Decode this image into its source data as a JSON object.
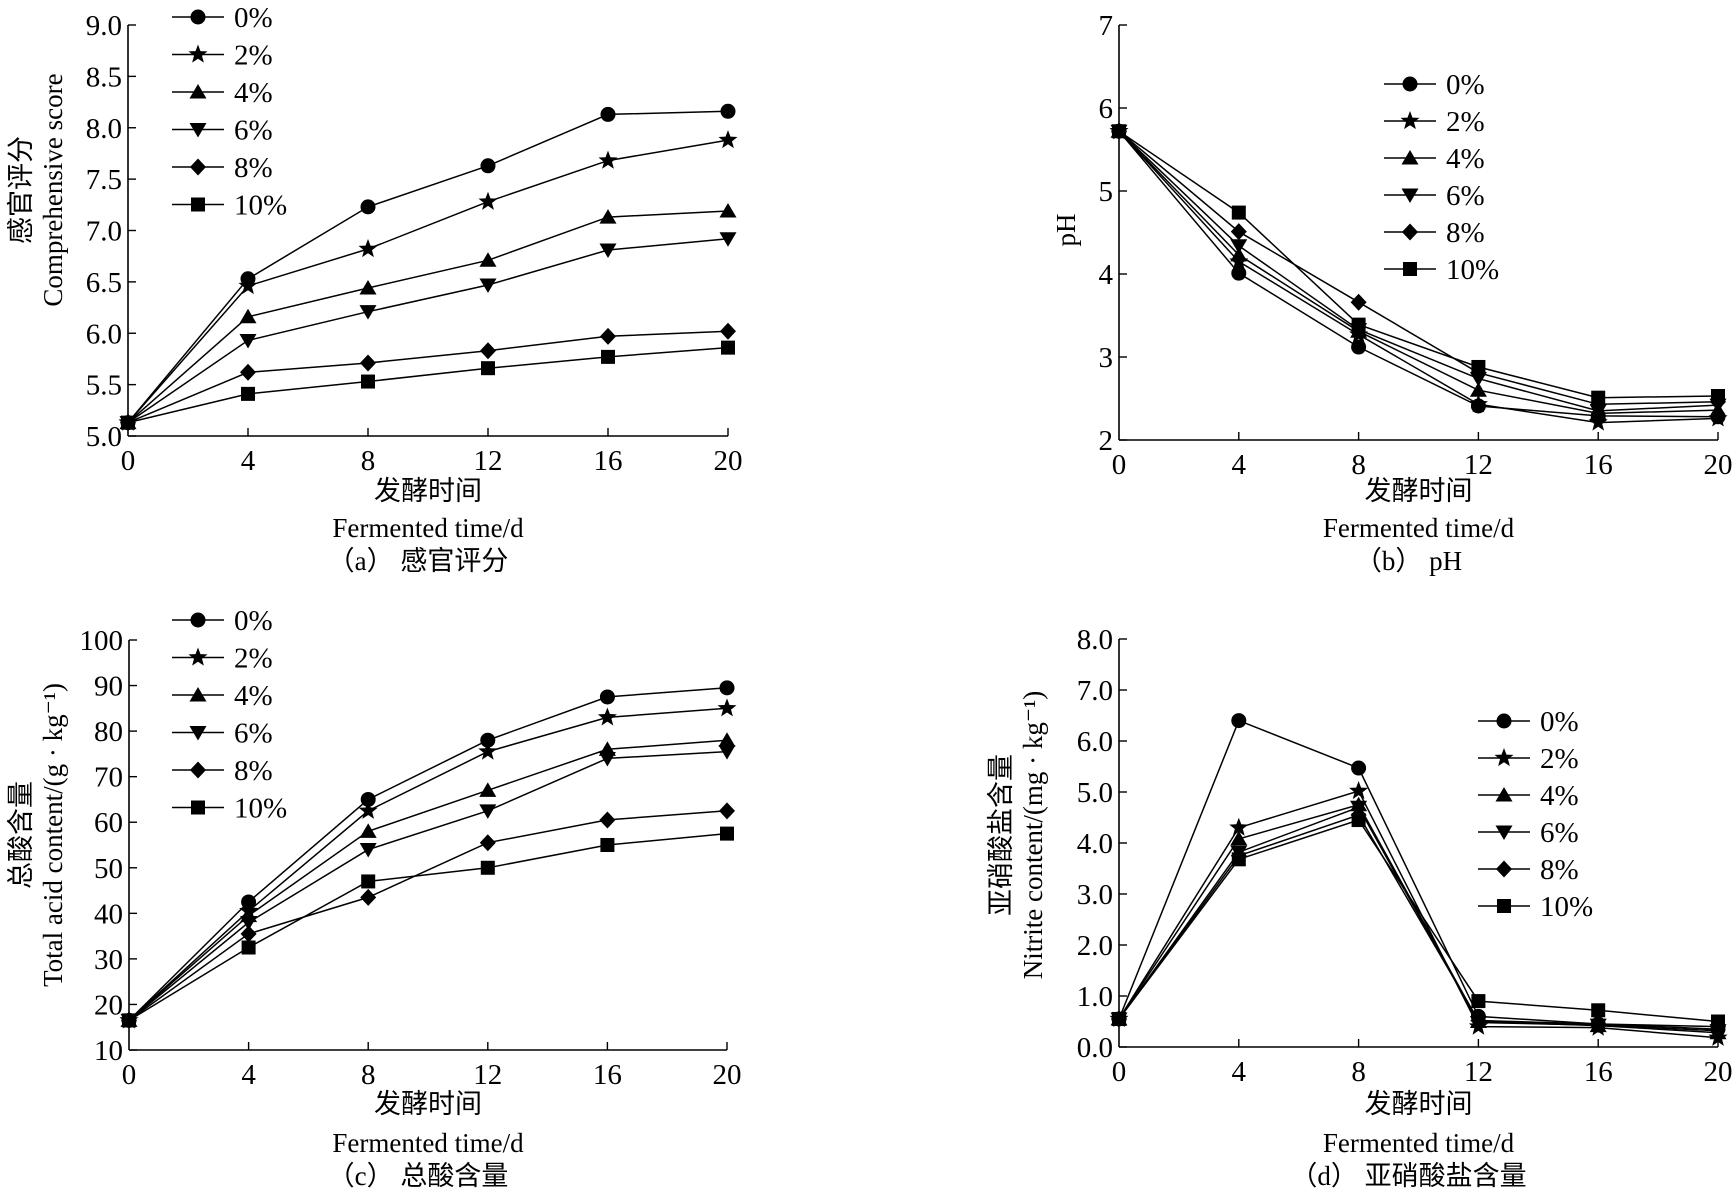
{
  "figure": {
    "series_names": [
      "0%",
      "2%",
      "4%",
      "6%",
      "8%",
      "10%"
    ],
    "marker_types": [
      "circle",
      "star",
      "triangle-up",
      "triangle-down",
      "diamond",
      "square"
    ]
  },
  "chart_data": [
    {
      "id": "a",
      "type": "line",
      "caption": "（a） 感官评分",
      "xlabel_cn": "发酵时间",
      "xlabel_en": "Fermented time/d",
      "ylabel_cn": "感官评分",
      "ylabel_en": "Comprehensive score",
      "x": [
        0,
        4,
        8,
        12,
        16,
        20
      ],
      "xticks": [
        "0",
        "4",
        "8",
        "12",
        "16",
        "20"
      ],
      "xlim": [
        0,
        20
      ],
      "ylim": [
        5.0,
        9.0
      ],
      "yticks": [
        "5.0",
        "5.5",
        "6.0",
        "6.5",
        "7.0",
        "7.5",
        "8.0",
        "8.5",
        "9.0"
      ],
      "ytick_values": [
        5.0,
        5.5,
        6.0,
        6.5,
        7.0,
        7.5,
        8.0,
        8.5,
        9.0
      ],
      "legend_position": "top-left",
      "grid": false,
      "series": [
        {
          "name": "0%",
          "marker": "circle",
          "values": [
            5.13,
            6.53,
            7.23,
            7.63,
            8.13,
            8.16
          ]
        },
        {
          "name": "2%",
          "marker": "star",
          "values": [
            5.13,
            6.46,
            6.82,
            7.28,
            7.68,
            7.88
          ]
        },
        {
          "name": "4%",
          "marker": "triangle-up",
          "values": [
            5.13,
            6.16,
            6.44,
            6.71,
            7.13,
            7.19
          ]
        },
        {
          "name": "6%",
          "marker": "triangle-down",
          "values": [
            5.13,
            5.93,
            6.21,
            6.47,
            6.81,
            6.92
          ]
        },
        {
          "name": "8%",
          "marker": "diamond",
          "values": [
            5.13,
            5.62,
            5.71,
            5.83,
            5.97,
            6.02
          ]
        },
        {
          "name": "10%",
          "marker": "square",
          "values": [
            5.13,
            5.41,
            5.53,
            5.66,
            5.77,
            5.86
          ]
        }
      ]
    },
    {
      "id": "b",
      "type": "line",
      "caption": "（b） pH",
      "xlabel_cn": "发酵时间",
      "xlabel_en": "Fermented time/d",
      "ylabel_cn": "",
      "ylabel_en": "pH",
      "x": [
        0,
        4,
        8,
        12,
        16,
        20
      ],
      "xticks": [
        "0",
        "4",
        "8",
        "12",
        "16",
        "20"
      ],
      "xlim": [
        0,
        20
      ],
      "ylim": [
        2,
        7
      ],
      "yticks": [
        "2",
        "3",
        "4",
        "5",
        "6",
        "7"
      ],
      "ytick_values": [
        2,
        3,
        4,
        5,
        6,
        7
      ],
      "legend_position": "top-right",
      "grid": false,
      "series": [
        {
          "name": "0%",
          "marker": "circle",
          "values": [
            5.72,
            4.01,
            3.12,
            2.41,
            2.29,
            2.28
          ]
        },
        {
          "name": "2%",
          "marker": "star",
          "values": [
            5.72,
            4.15,
            3.27,
            2.43,
            2.21,
            2.26
          ]
        },
        {
          "name": "4%",
          "marker": "triangle-up",
          "values": [
            5.72,
            4.23,
            3.31,
            2.6,
            2.32,
            2.36
          ]
        },
        {
          "name": "6%",
          "marker": "triangle-down",
          "values": [
            5.72,
            4.34,
            3.33,
            2.74,
            2.35,
            2.42
          ]
        },
        {
          "name": "8%",
          "marker": "diamond",
          "values": [
            5.72,
            4.51,
            3.66,
            2.81,
            2.43,
            2.46
          ]
        },
        {
          "name": "10%",
          "marker": "square",
          "values": [
            5.72,
            4.74,
            3.39,
            2.88,
            2.51,
            2.53
          ]
        }
      ]
    },
    {
      "id": "c",
      "type": "line",
      "caption": "（c） 总酸含量",
      "xlabel_cn": "发酵时间",
      "xlabel_en": "Fermented time/d",
      "ylabel_cn": "总酸含量",
      "ylabel_en": "Total acid content/(g · kg⁻¹)",
      "x": [
        0,
        4,
        8,
        12,
        16,
        20
      ],
      "xticks": [
        "0",
        "4",
        "8",
        "12",
        "16",
        "20"
      ],
      "xlim": [
        0,
        20
      ],
      "ylim": [
        10,
        100
      ],
      "yticks": [
        "10",
        "20",
        "30",
        "40",
        "50",
        "60",
        "70",
        "80",
        "90",
        "100"
      ],
      "ytick_values": [
        10,
        20,
        30,
        40,
        50,
        60,
        70,
        80,
        90,
        100
      ],
      "legend_position": "top-left",
      "grid": false,
      "series": [
        {
          "name": "0%",
          "marker": "circle",
          "values": [
            16.5,
            42.5,
            65.0,
            78.0,
            87.5,
            89.5
          ]
        },
        {
          "name": "2%",
          "marker": "star",
          "values": [
            16.5,
            40.5,
            62.5,
            75.5,
            83.0,
            85.0
          ]
        },
        {
          "name": "4%",
          "marker": "triangle-up",
          "values": [
            16.5,
            39.5,
            58.0,
            67.0,
            76.0,
            78.0
          ]
        },
        {
          "name": "6%",
          "marker": "triangle-down",
          "values": [
            16.5,
            38.0,
            54.0,
            62.5,
            74.0,
            75.5
          ]
        },
        {
          "name": "8%",
          "marker": "diamond",
          "values": [
            16.5,
            35.5,
            43.5,
            55.5,
            60.5,
            62.5
          ]
        },
        {
          "name": "10%",
          "marker": "square",
          "values": [
            16.5,
            32.5,
            47.0,
            50.0,
            55.0,
            57.5
          ]
        }
      ]
    },
    {
      "id": "d",
      "type": "line",
      "caption": "（d） 亚硝酸盐含量",
      "xlabel_cn": "发酵时间",
      "xlabel_en": "Fermented time/d",
      "ylabel_cn": "亚硝酸盐含量",
      "ylabel_en": "Nitrite content/(mg · kg⁻¹)",
      "x": [
        0,
        4,
        8,
        12,
        16,
        20
      ],
      "xticks": [
        "0",
        "4",
        "8",
        "12",
        "16",
        "20"
      ],
      "xlim": [
        0,
        20
      ],
      "ylim": [
        0.0,
        8.0
      ],
      "yticks": [
        "0.0",
        "1.0",
        "2.0",
        "3.0",
        "4.0",
        "5.0",
        "6.0",
        "7.0",
        "8.0"
      ],
      "ytick_values": [
        0,
        1,
        2,
        3,
        4,
        5,
        6,
        7,
        8
      ],
      "legend_position": "right",
      "grid": false,
      "series": [
        {
          "name": "0%",
          "marker": "circle",
          "values": [
            0.55,
            6.4,
            5.47,
            0.6,
            0.45,
            0.35
          ]
        },
        {
          "name": "2%",
          "marker": "star",
          "values": [
            0.55,
            4.3,
            5.02,
            0.4,
            0.38,
            0.18
          ]
        },
        {
          "name": "4%",
          "marker": "triangle-up",
          "values": [
            0.55,
            4.08,
            4.75,
            0.5,
            0.42,
            0.28
          ]
        },
        {
          "name": "6%",
          "marker": "triangle-down",
          "values": [
            0.55,
            3.82,
            4.7,
            0.48,
            0.43,
            0.32
          ]
        },
        {
          "name": "8%",
          "marker": "diamond",
          "values": [
            0.55,
            3.75,
            4.55,
            0.52,
            0.45,
            0.4
          ]
        },
        {
          "name": "10%",
          "marker": "square",
          "values": [
            0.55,
            3.68,
            4.45,
            0.9,
            0.72,
            0.5
          ]
        }
      ]
    }
  ]
}
